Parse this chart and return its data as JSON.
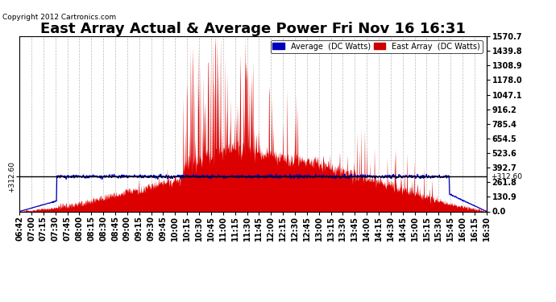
{
  "title": "East Array Actual & Average Power Fri Nov 16 16:31",
  "copyright": "Copyright 2012 Cartronics.com",
  "legend_labels": [
    "Average  (DC Watts)",
    "East Array  (DC Watts)"
  ],
  "legend_colors": [
    "#0000bb",
    "#cc0000"
  ],
  "y_ticks": [
    0.0,
    130.9,
    261.8,
    392.7,
    523.6,
    654.5,
    785.4,
    916.2,
    1047.1,
    1178.0,
    1308.9,
    1439.8,
    1570.7
  ],
  "y_min": 0.0,
  "y_max": 1570.7,
  "hline_value": 312.6,
  "background_color": "#ffffff",
  "plot_bg_color": "#ffffff",
  "grid_color": "#aaaaaa",
  "fill_color": "#dd0000",
  "avg_color": "#0000bb",
  "spine_color": "#000000",
  "title_fontsize": 13,
  "tick_fontsize": 7,
  "x_tick_labels": [
    "06:42",
    "07:00",
    "07:15",
    "07:30",
    "07:45",
    "08:00",
    "08:15",
    "08:30",
    "08:45",
    "09:00",
    "09:15",
    "09:30",
    "09:45",
    "10:00",
    "10:15",
    "10:30",
    "10:45",
    "11:00",
    "11:15",
    "11:30",
    "11:45",
    "12:00",
    "12:15",
    "12:30",
    "12:45",
    "13:00",
    "13:15",
    "13:30",
    "13:45",
    "14:00",
    "14:15",
    "14:30",
    "14:45",
    "15:00",
    "15:15",
    "15:30",
    "15:45",
    "16:00",
    "16:15",
    "16:30"
  ]
}
